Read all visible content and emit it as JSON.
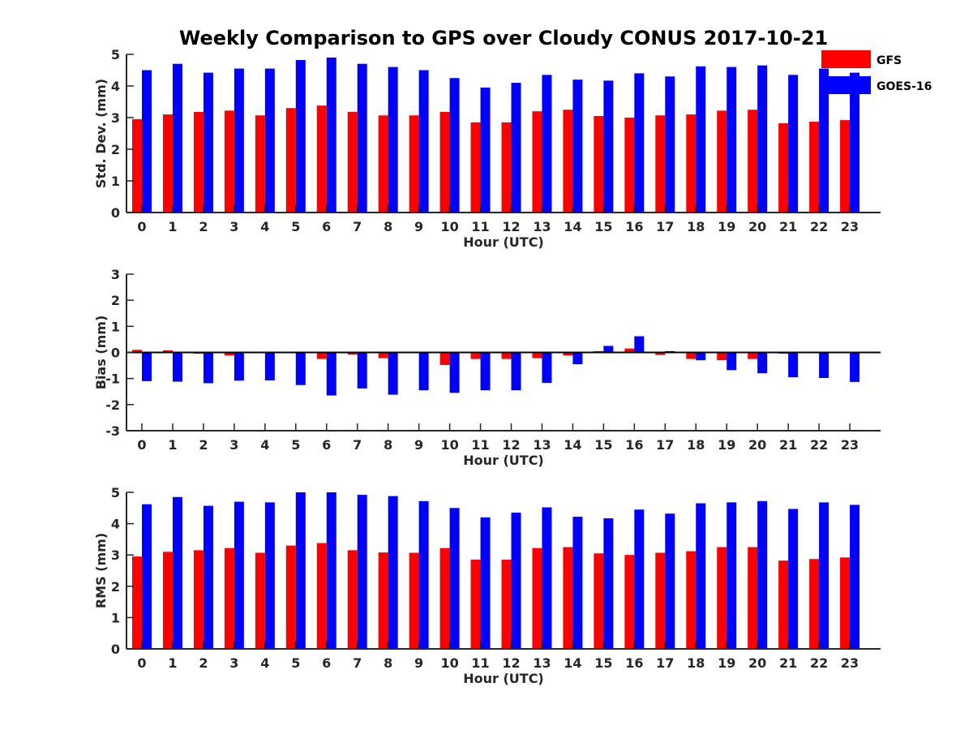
{
  "figure": {
    "title": "Weekly Comparison to GPS over Cloudy CONUS 2017-10-21"
  },
  "legend": {
    "entries": [
      {
        "name": "GFS",
        "color": "#ff0000"
      },
      {
        "name": "GOES-16",
        "color": "#0000ff"
      }
    ],
    "placement": "top-right"
  },
  "chart_data": [
    {
      "type": "bar",
      "xlabel": "Hour (UTC)",
      "ylabel": "Std. Dev. (mm)",
      "ylim": [
        0,
        5
      ],
      "yticks": [
        "0",
        "1",
        "2",
        "3",
        "4",
        "5"
      ],
      "categories": [
        "0",
        "1",
        "2",
        "3",
        "4",
        "5",
        "6",
        "7",
        "8",
        "9",
        "10",
        "11",
        "12",
        "13",
        "14",
        "15",
        "16",
        "17",
        "18",
        "19",
        "20",
        "21",
        "22",
        "23"
      ],
      "series": [
        {
          "name": "GFS",
          "color": "#ff0000",
          "values": [
            2.95,
            3.1,
            3.18,
            3.22,
            3.07,
            3.3,
            3.38,
            3.18,
            3.07,
            3.07,
            3.18,
            2.85,
            2.85,
            3.2,
            3.25,
            3.05,
            3.0,
            3.07,
            3.1,
            3.22,
            3.25,
            2.82,
            2.87,
            2.92
          ]
        },
        {
          "name": "GOES-16",
          "color": "#0000ff",
          "values": [
            4.5,
            4.7,
            4.42,
            4.55,
            4.55,
            4.82,
            4.9,
            4.7,
            4.6,
            4.5,
            4.25,
            3.95,
            4.1,
            4.35,
            4.2,
            4.17,
            4.4,
            4.3,
            4.62,
            4.6,
            4.65,
            4.35,
            4.55,
            4.42
          ]
        }
      ]
    },
    {
      "type": "bar",
      "xlabel": "Hour (UTC)",
      "ylabel": "Bias (mm)",
      "ylim": [
        -3,
        3
      ],
      "yticks": [
        "-3",
        "-2",
        "-1",
        "0",
        "1",
        "2",
        "3"
      ],
      "categories": [
        "0",
        "1",
        "2",
        "3",
        "4",
        "5",
        "6",
        "7",
        "8",
        "9",
        "10",
        "11",
        "12",
        "13",
        "14",
        "15",
        "16",
        "17",
        "18",
        "19",
        "20",
        "21",
        "22",
        "23"
      ],
      "series": [
        {
          "name": "GFS",
          "color": "#ff0000",
          "values": [
            0.1,
            0.08,
            -0.05,
            -0.12,
            -0.02,
            -0.02,
            -0.25,
            -0.08,
            -0.22,
            0.0,
            -0.48,
            -0.25,
            -0.25,
            -0.22,
            -0.12,
            0.05,
            0.15,
            -0.1,
            -0.25,
            -0.3,
            -0.25,
            -0.05,
            -0.02,
            0.02
          ]
        },
        {
          "name": "GOES-16",
          "color": "#0000ff",
          "values": [
            -1.1,
            -1.12,
            -1.18,
            -1.08,
            -1.07,
            -1.25,
            -1.65,
            -1.38,
            -1.62,
            -1.45,
            -1.55,
            -1.45,
            -1.45,
            -1.17,
            -0.45,
            0.25,
            0.62,
            0.05,
            -0.3,
            -0.68,
            -0.8,
            -0.95,
            -0.98,
            -1.13
          ]
        }
      ]
    },
    {
      "type": "bar",
      "xlabel": "Hour (UTC)",
      "ylabel": "RMS (mm)",
      "ylim": [
        0,
        5
      ],
      "yticks": [
        "0",
        "1",
        "2",
        "3",
        "4",
        "5"
      ],
      "categories": [
        "0",
        "1",
        "2",
        "3",
        "4",
        "5",
        "6",
        "7",
        "8",
        "9",
        "10",
        "11",
        "12",
        "13",
        "14",
        "15",
        "16",
        "17",
        "18",
        "19",
        "20",
        "21",
        "22",
        "23"
      ],
      "series": [
        {
          "name": "GFS",
          "color": "#ff0000",
          "values": [
            2.95,
            3.1,
            3.15,
            3.22,
            3.07,
            3.3,
            3.38,
            3.15,
            3.08,
            3.07,
            3.22,
            2.85,
            2.85,
            3.22,
            3.25,
            3.05,
            3.0,
            3.07,
            3.12,
            3.25,
            3.25,
            2.82,
            2.87,
            2.92
          ]
        },
        {
          "name": "GOES-16",
          "color": "#0000ff",
          "values": [
            4.62,
            4.85,
            4.57,
            4.7,
            4.68,
            5.0,
            5.0,
            4.92,
            4.88,
            4.72,
            4.5,
            4.2,
            4.35,
            4.52,
            4.22,
            4.17,
            4.45,
            4.32,
            4.65,
            4.68,
            4.72,
            4.47,
            4.68,
            4.6
          ]
        }
      ]
    }
  ]
}
